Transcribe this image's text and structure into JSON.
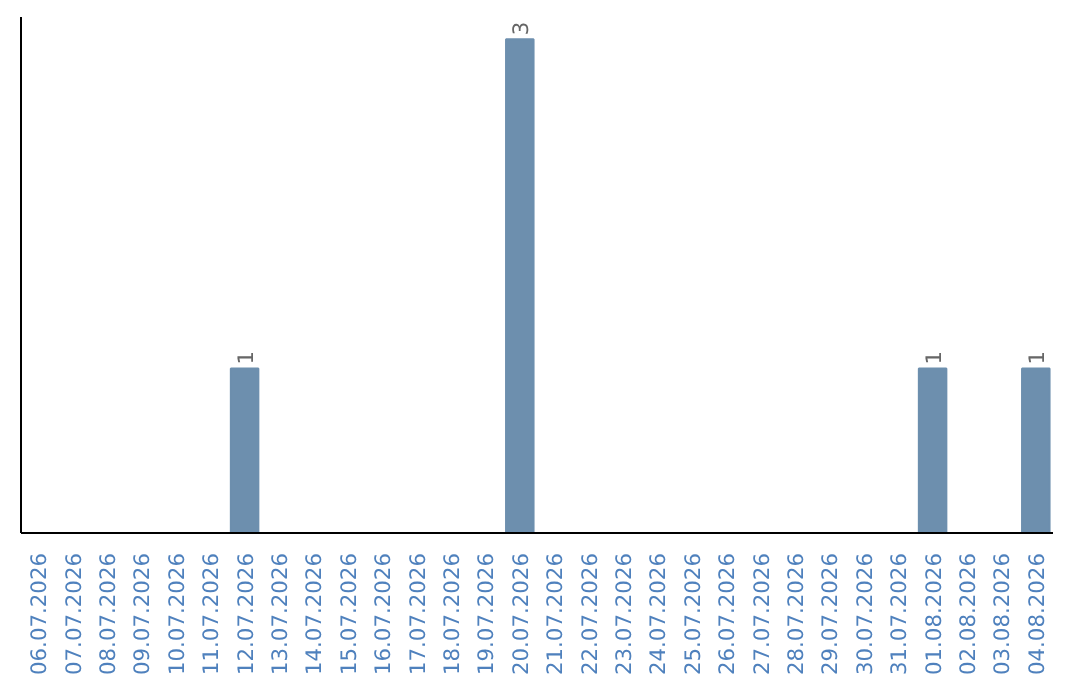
{
  "chart_data": {
    "type": "bar",
    "categories": [
      "06.07.2026",
      "07.07.2026",
      "08.07.2026",
      "09.07.2026",
      "10.07.2026",
      "11.07.2026",
      "12.07.2026",
      "13.07.2026",
      "14.07.2026",
      "15.07.2026",
      "16.07.2026",
      "17.07.2026",
      "18.07.2026",
      "19.07.2026",
      "20.07.2026",
      "21.07.2026",
      "22.07.2026",
      "23.07.2026",
      "24.07.2026",
      "25.07.2026",
      "26.07.2026",
      "27.07.2026",
      "28.07.2026",
      "29.07.2026",
      "30.07.2026",
      "31.07.2026",
      "01.08.2026",
      "02.08.2026",
      "03.08.2026",
      "04.08.2026"
    ],
    "values": [
      0,
      0,
      0,
      0,
      0,
      0,
      1,
      0,
      0,
      0,
      0,
      0,
      0,
      0,
      3,
      0,
      0,
      0,
      0,
      0,
      0,
      0,
      0,
      0,
      0,
      0,
      1,
      0,
      0,
      1
    ],
    "value_labels": [
      null,
      null,
      null,
      null,
      null,
      null,
      "1",
      null,
      null,
      null,
      null,
      null,
      null,
      null,
      "3",
      null,
      null,
      null,
      null,
      null,
      null,
      null,
      null,
      null,
      null,
      null,
      "1",
      null,
      null,
      "1"
    ],
    "color": "#6d8fae",
    "tick_labels": "x",
    "grid": false
  }
}
